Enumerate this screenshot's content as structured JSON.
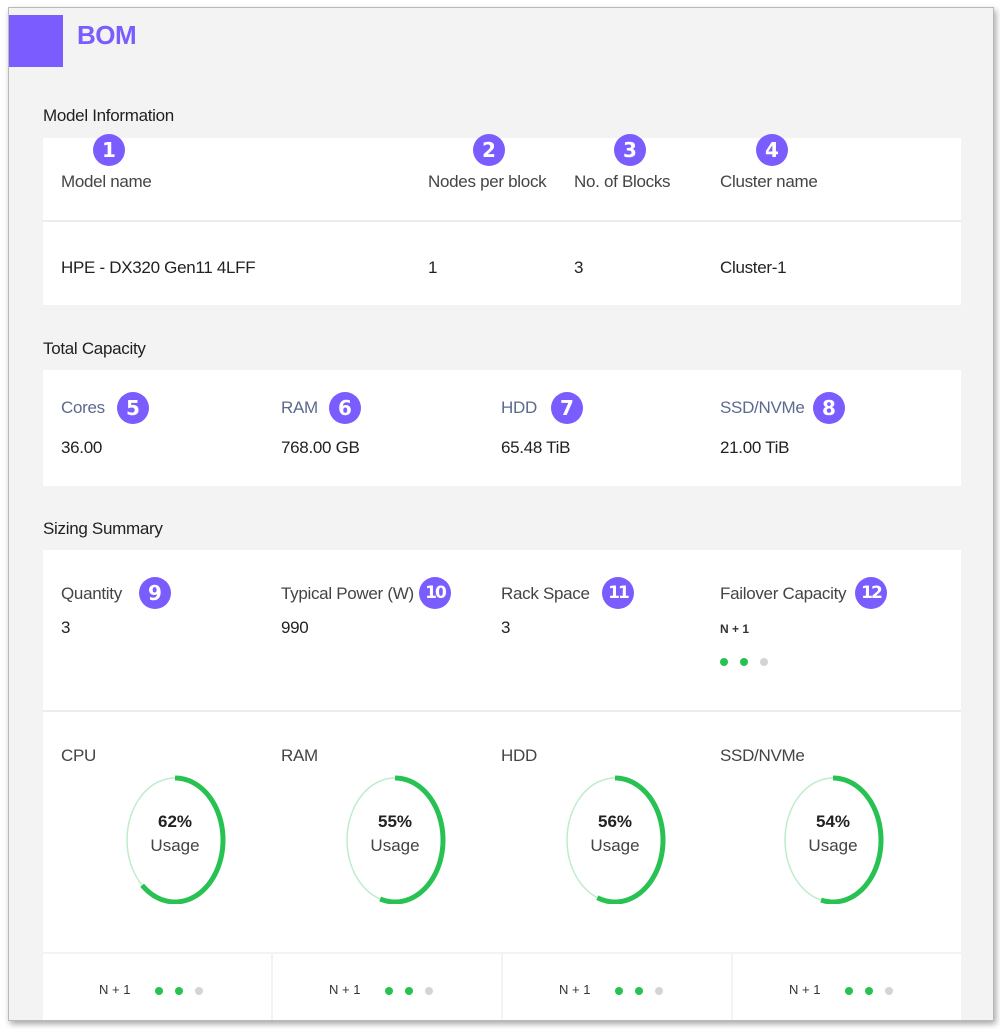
{
  "header": {
    "title": "BOM"
  },
  "model_information": {
    "title": "Model Information",
    "columns": [
      {
        "badge": "1",
        "label": "Model name",
        "value": "HPE - DX320 Gen11 4LFF"
      },
      {
        "badge": "2",
        "label": "Nodes per block",
        "value": "1"
      },
      {
        "badge": "3",
        "label": "No. of Blocks",
        "value": "3"
      },
      {
        "badge": "4",
        "label": "Cluster name",
        "value": "Cluster-1"
      }
    ]
  },
  "total_capacity": {
    "title": "Total Capacity",
    "items": [
      {
        "badge": "5",
        "label": "Cores",
        "value": "36.00"
      },
      {
        "badge": "6",
        "label": "RAM",
        "value": "768.00 GB"
      },
      {
        "badge": "7",
        "label": "HDD",
        "value": "65.48 TiB"
      },
      {
        "badge": "8",
        "label": "SSD/NVMe",
        "value": "21.00 TiB"
      }
    ]
  },
  "sizing_summary": {
    "title": "Sizing Summary",
    "items": [
      {
        "badge": "9",
        "label": "Quantity",
        "value": "3"
      },
      {
        "badge": "10",
        "label": "Typical Power (W)",
        "value": "990"
      },
      {
        "badge": "11",
        "label": "Rack Space",
        "value": "3"
      },
      {
        "badge": "12",
        "label": "Failover Capacity",
        "value": "N + 1",
        "dots_active": 2,
        "dots_total": 3
      }
    ],
    "usage": [
      {
        "label": "CPU",
        "percent": 62,
        "percent_text": "62%",
        "usage_text": "Usage"
      },
      {
        "label": "RAM",
        "percent": 55,
        "percent_text": "55%",
        "usage_text": "Usage"
      },
      {
        "label": "HDD",
        "percent": 56,
        "percent_text": "56%",
        "usage_text": "Usage"
      },
      {
        "label": "SSD/NVMe",
        "percent": 54,
        "percent_text": "54%",
        "usage_text": "Usage"
      }
    ],
    "footer": [
      {
        "label": "N + 1",
        "dots_active": 2,
        "dots_total": 3
      },
      {
        "label": "N + 1",
        "dots_active": 2,
        "dots_total": 3
      },
      {
        "label": "N + 1",
        "dots_active": 2,
        "dots_total": 3
      },
      {
        "label": "N + 1",
        "dots_active": 2,
        "dots_total": 3
      }
    ]
  },
  "colors": {
    "accent": "#7a5cff",
    "usage_green": "#27c252",
    "usage_track": "#bfeccb",
    "dot_inactive": "#d4d4d4"
  }
}
